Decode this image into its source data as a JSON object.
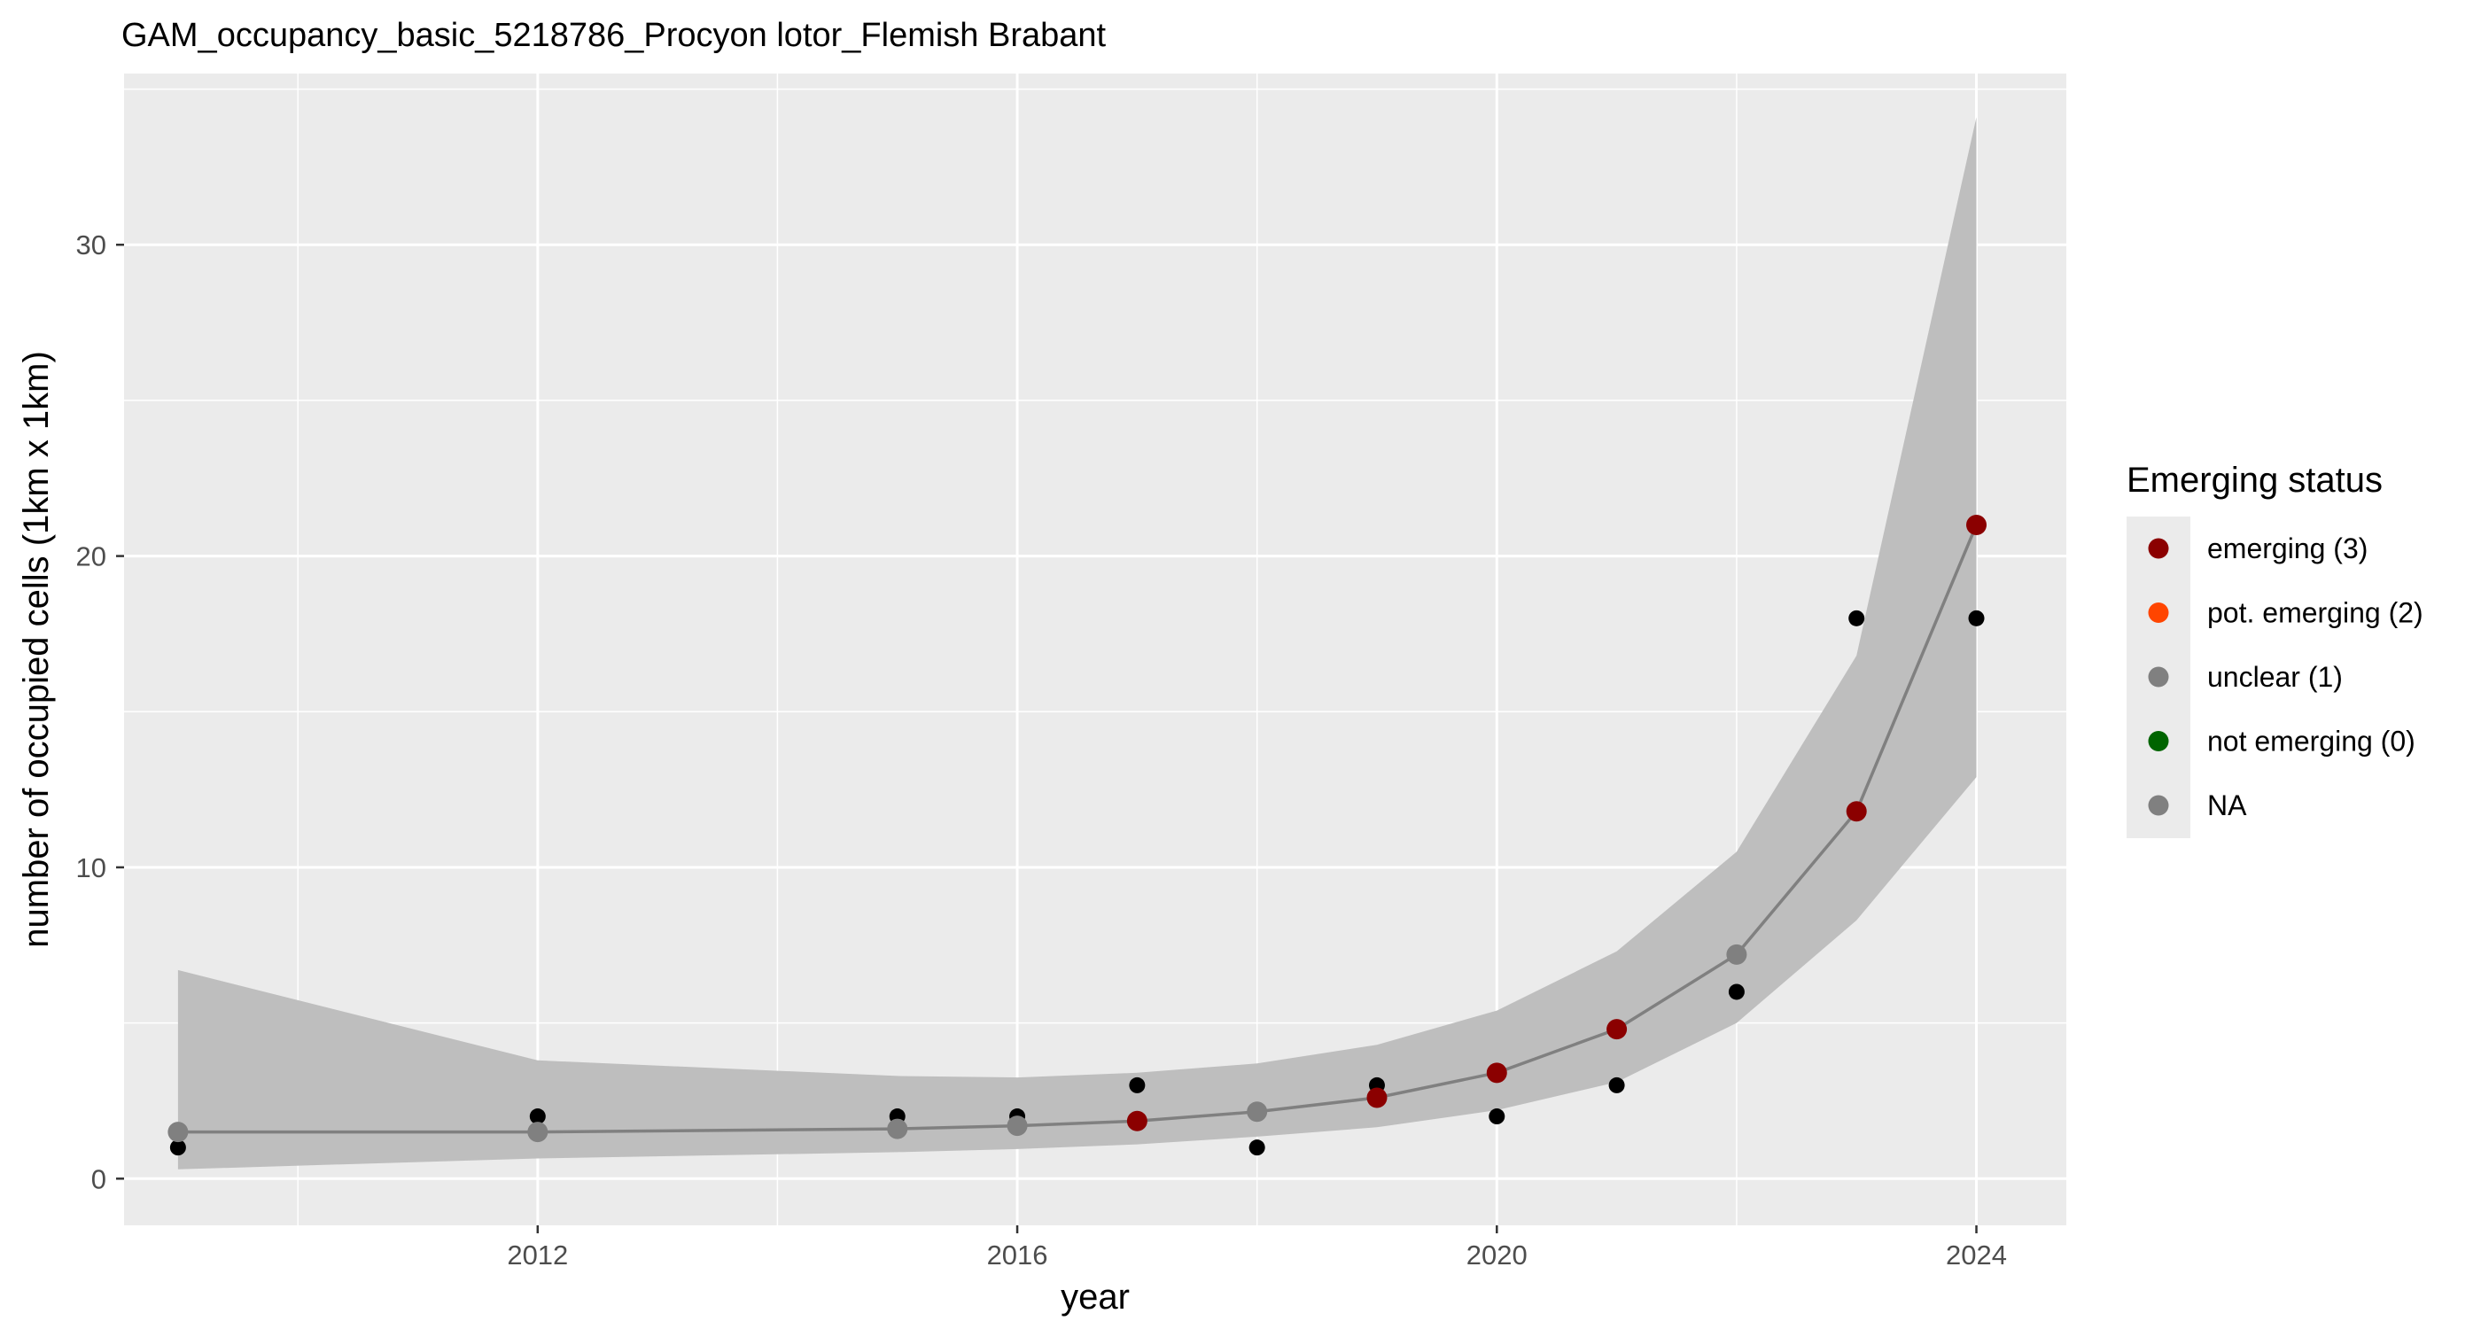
{
  "chart_data": {
    "type": "line",
    "title": "GAM_occupancy_basic_5218786_Procyon lotor_Flemish Brabant",
    "xlabel": "year",
    "ylabel": "number of occupied cells (1km x 1km)",
    "xlim": [
      2008.55,
      2024.75
    ],
    "ylim": [
      -1.5,
      35.5
    ],
    "x_ticks": [
      2012,
      2016,
      2020,
      2024
    ],
    "x_tick_labels": [
      "2012",
      "2016",
      "2020",
      "2024"
    ],
    "x_minor_ticks": [
      2010,
      2014,
      2018,
      2022
    ],
    "y_ticks": [
      0,
      10,
      20,
      30
    ],
    "y_tick_labels": [
      "0",
      "10",
      "20",
      "30"
    ],
    "y_minor_ticks": [
      5,
      15,
      25,
      35
    ],
    "grid": true,
    "observed": {
      "x": [
        2009,
        2012,
        2015,
        2016,
        2017,
        2018,
        2019,
        2020,
        2021,
        2022,
        2023,
        2024
      ],
      "y": [
        1,
        2,
        2,
        2,
        3,
        1,
        3,
        2,
        3,
        6,
        18,
        18
      ],
      "color": "#000000"
    },
    "fitted": {
      "x": [
        2009,
        2012,
        2015,
        2016,
        2017,
        2018,
        2019,
        2020,
        2021,
        2022,
        2023,
        2024
      ],
      "y": [
        1.5,
        1.5,
        1.6,
        1.7,
        1.85,
        2.15,
        2.6,
        3.4,
        4.8,
        7.2,
        11.8,
        21.0
      ],
      "lower": [
        0.3,
        0.65,
        0.85,
        0.95,
        1.1,
        1.35,
        1.65,
        2.2,
        3.1,
        5.0,
        8.3,
        12.9
      ],
      "upper": [
        6.7,
        3.8,
        3.3,
        3.25,
        3.4,
        3.7,
        4.3,
        5.4,
        7.3,
        10.5,
        16.8,
        34.1
      ],
      "status": [
        "NA",
        "NA",
        "NA",
        "NA",
        "emerging (3)",
        "NA",
        "emerging (3)",
        "emerging (3)",
        "emerging (3)",
        "NA",
        "emerging (3)",
        "emerging (3)"
      ],
      "line_color": "#808080",
      "ribbon_color": "#bebebe"
    },
    "legend": {
      "title": "Emerging status",
      "position": "right",
      "entries": [
        {
          "label": "emerging (3)",
          "color": "#8b0000"
        },
        {
          "label": "pot. emerging (2)",
          "color": "#ff4500"
        },
        {
          "label": "unclear (1)",
          "color": "#808080"
        },
        {
          "label": "not emerging (0)",
          "color": "#006400"
        },
        {
          "label": "NA",
          "color": "#808080"
        }
      ]
    },
    "colors": {
      "panel_background": "#ebebeb",
      "grid_line": "#ffffff",
      "tick_text": "#4d4d4d"
    }
  }
}
